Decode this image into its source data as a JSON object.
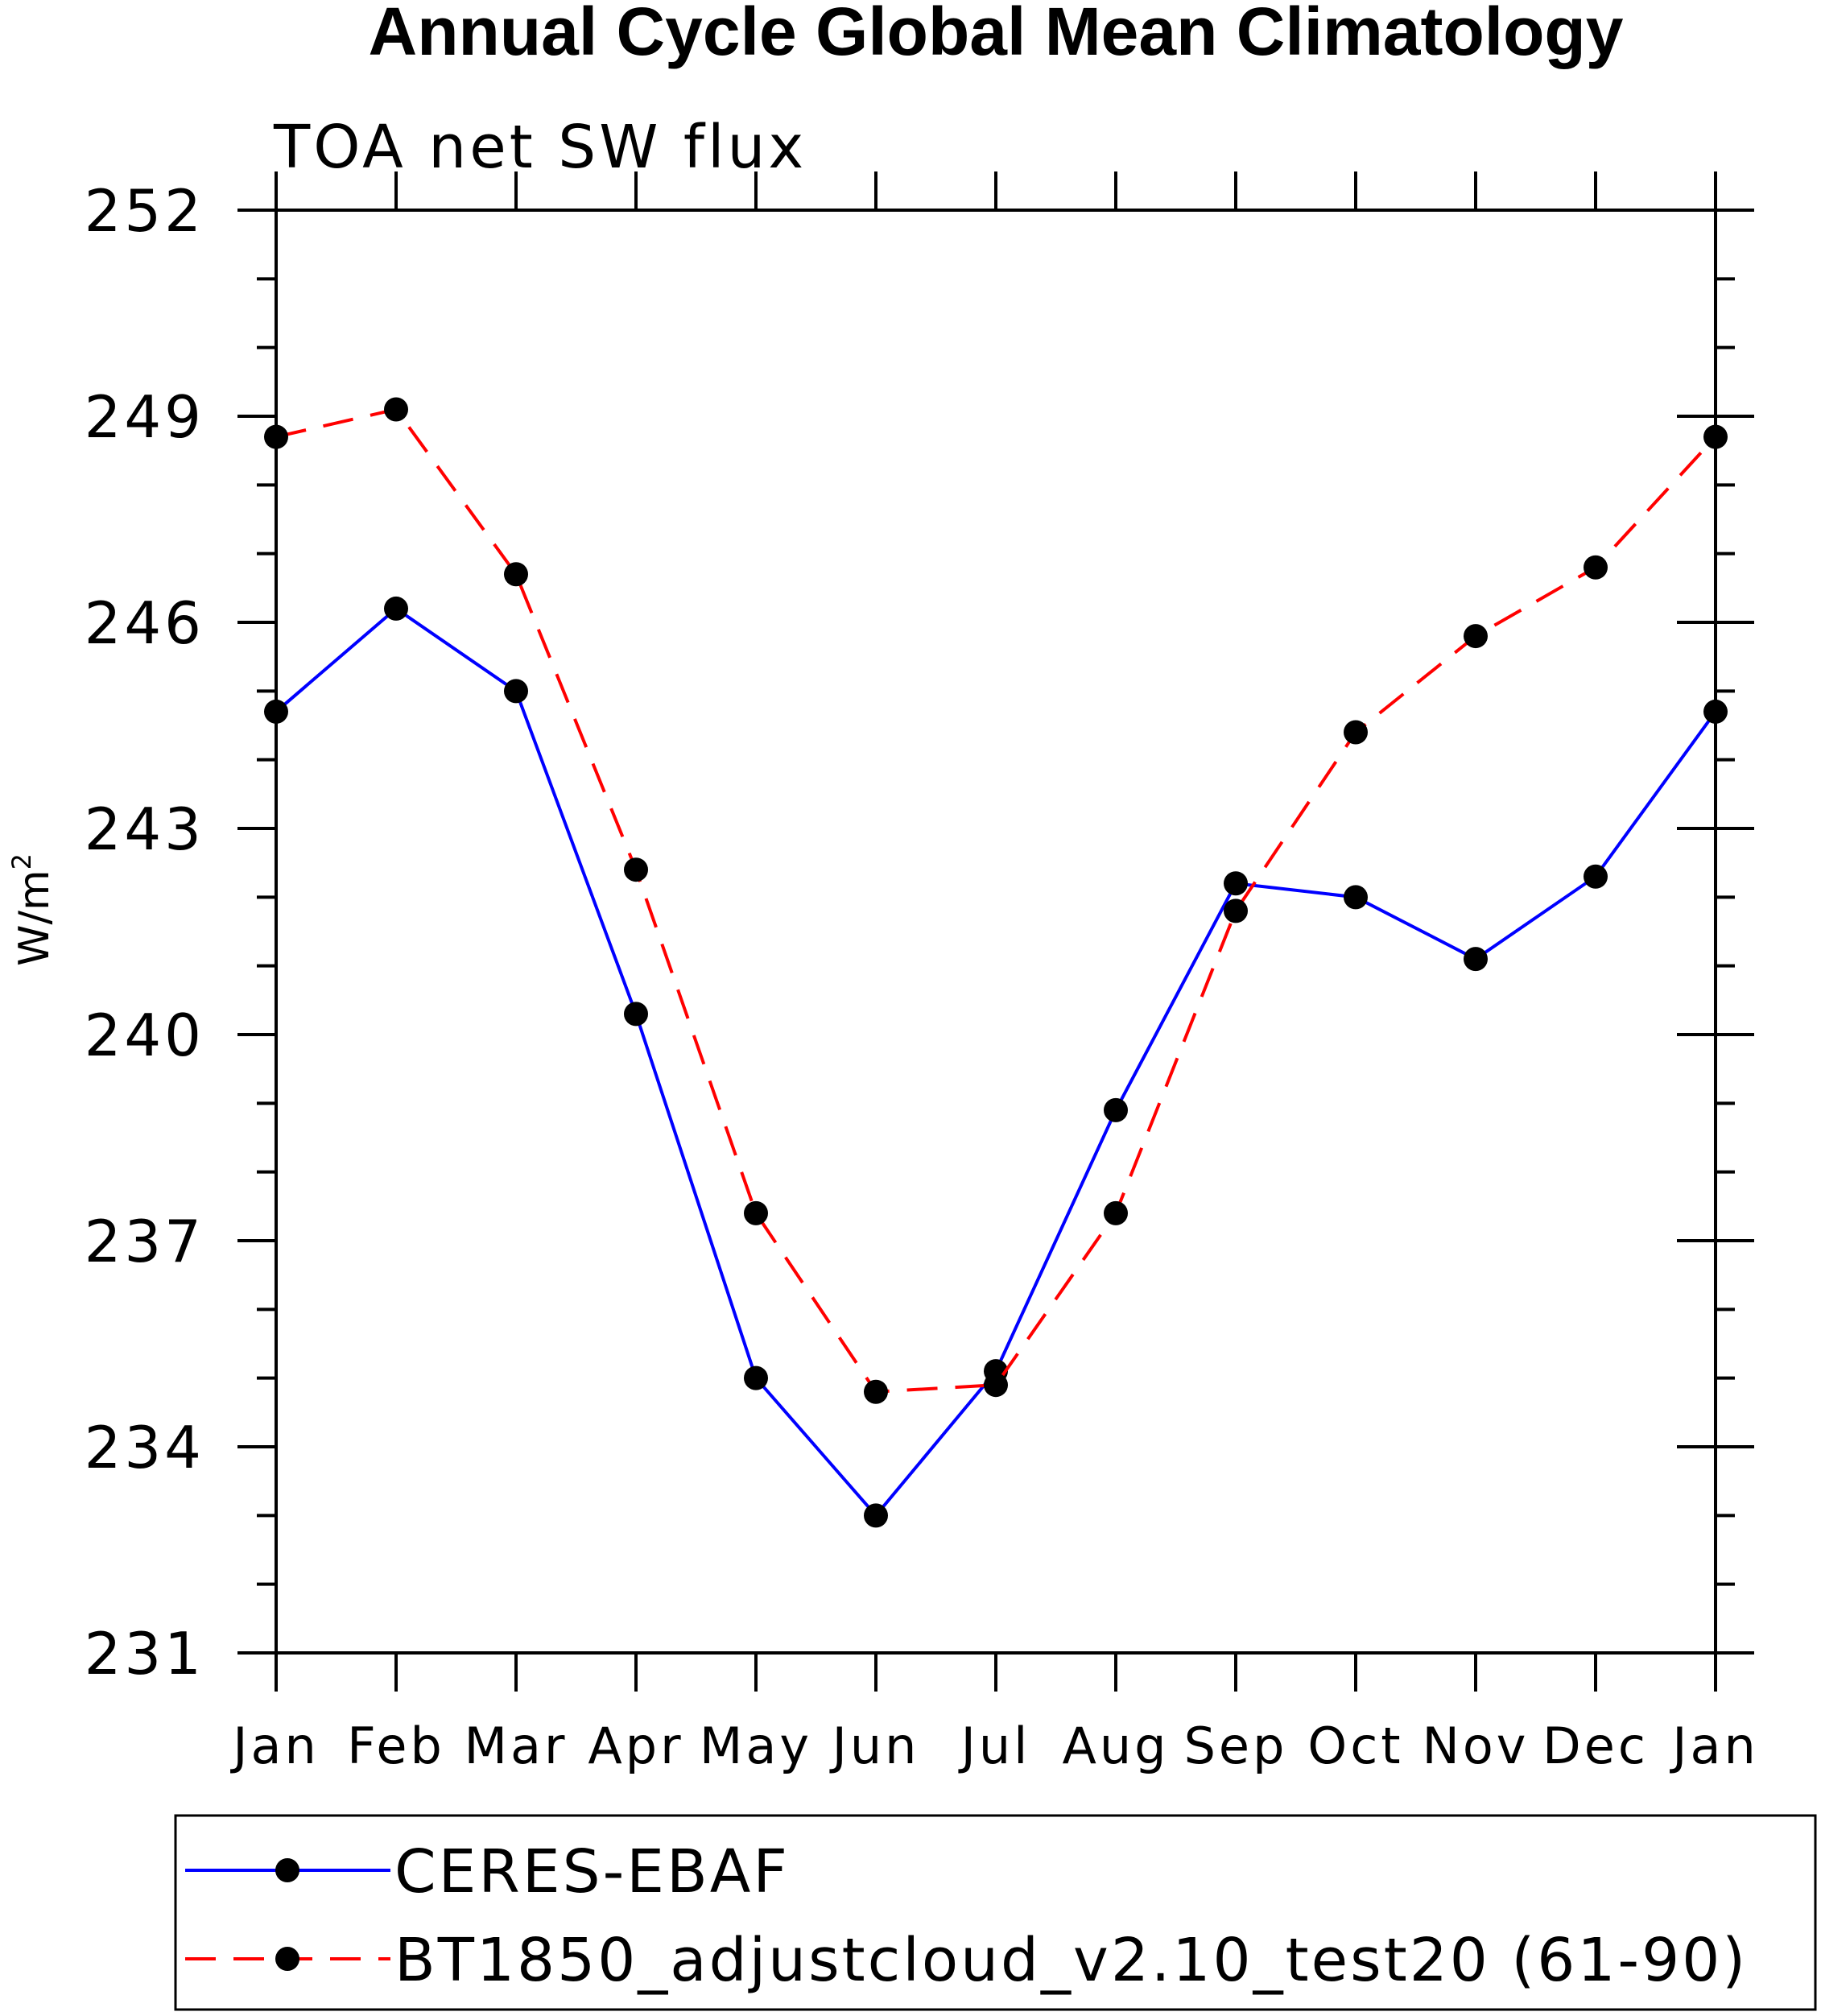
{
  "chart_data": {
    "type": "line",
    "title": "Annual Cycle Global Mean Climatology",
    "subtitle": "TOA net SW flux",
    "xlabel": "",
    "ylabel": "W/m",
    "ylabel_superscript": "2",
    "categories": [
      "Jan",
      "Feb",
      "Mar",
      "Apr",
      "May",
      "Jun",
      "Jul",
      "Aug",
      "Sep",
      "Oct",
      "Nov",
      "Dec",
      "Jan"
    ],
    "ylim": [
      231,
      252
    ],
    "yticks": [
      "231",
      "234",
      "237",
      "240",
      "243",
      "246",
      "249",
      "252"
    ],
    "grid": false,
    "legend_position": "bottom",
    "series": [
      {
        "name": "CERES-EBAF",
        "color": "#0000ff",
        "style": "solid",
        "marker": "filled-circle",
        "values": [
          244.7,
          246.2,
          245.0,
          240.3,
          235.0,
          233.0,
          235.1,
          238.9,
          242.2,
          242.0,
          241.1,
          242.3,
          244.7
        ]
      },
      {
        "name": "BT1850_adjustcloud_v2.10_test20 (61-90)",
        "color": "#ff0000",
        "style": "dashed",
        "marker": "filled-circle",
        "values": [
          248.7,
          249.1,
          246.7,
          242.4,
          237.4,
          234.8,
          234.9,
          237.4,
          241.8,
          244.4,
          245.8,
          246.8,
          248.7
        ]
      }
    ]
  }
}
